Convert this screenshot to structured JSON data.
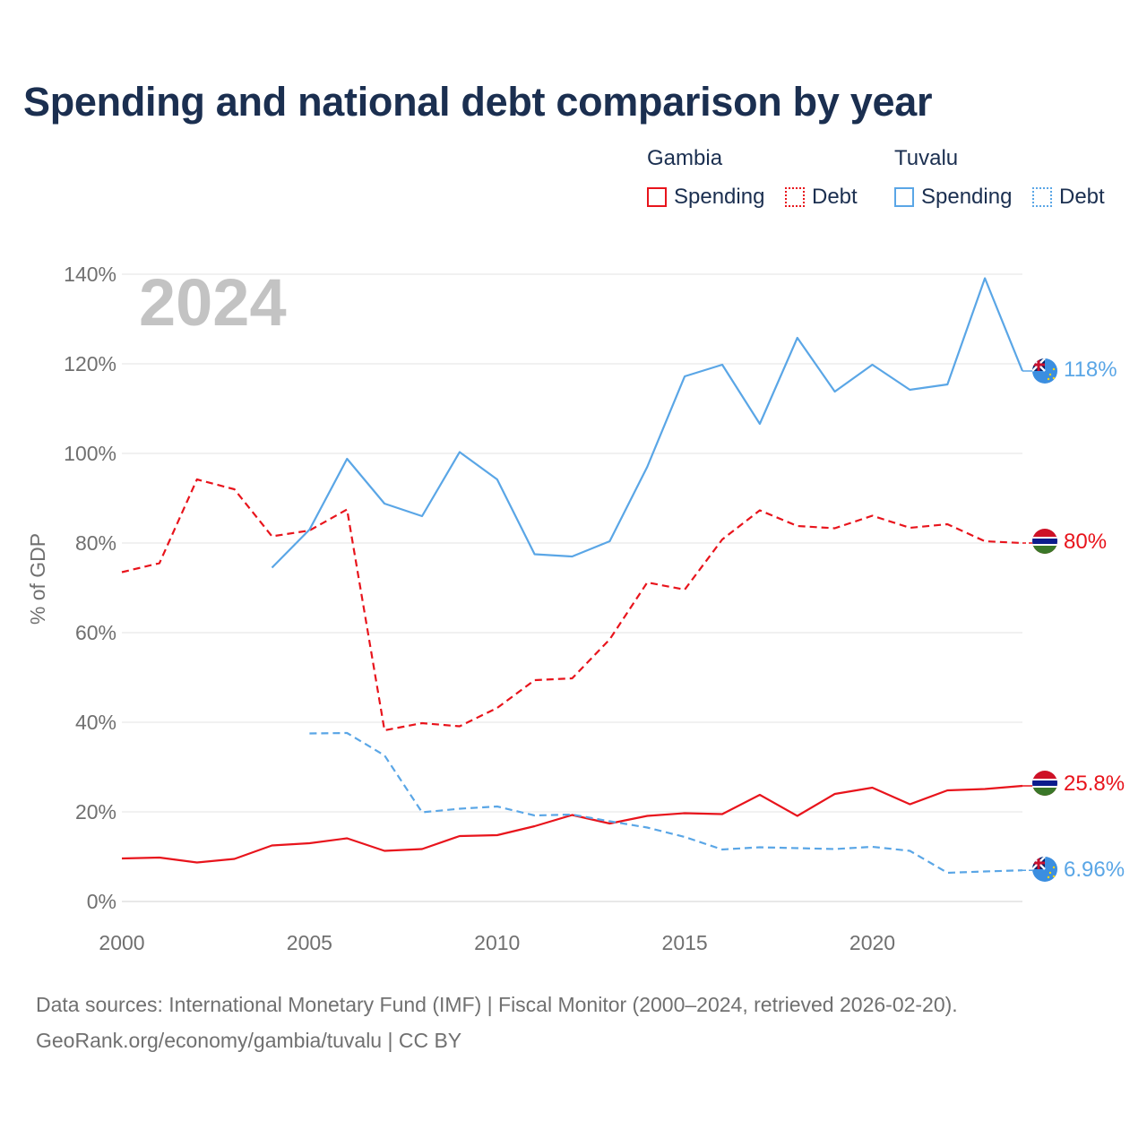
{
  "chart_data": {
    "type": "line",
    "title": "Spending and national debt comparison by year",
    "year_label": "2024",
    "ylabel": "% of GDP",
    "xlabel": "",
    "xlim": [
      2000,
      2024
    ],
    "ylim": [
      0,
      140
    ],
    "x_ticks": [
      2000,
      2005,
      2010,
      2015,
      2020
    ],
    "x_tick_labels": [
      "2000",
      "2005",
      "2010",
      "2015",
      "2020"
    ],
    "y_ticks": [
      0,
      20,
      40,
      60,
      80,
      100,
      120,
      140
    ],
    "y_tick_labels": [
      "0%",
      "20%",
      "40%",
      "60%",
      "80%",
      "100%",
      "120%",
      "140%"
    ],
    "grid": true,
    "legend_position": "top-right",
    "legend": {
      "groups": [
        {
          "country": "Gambia",
          "items": [
            {
              "label": "Spending",
              "style": "solid"
            },
            {
              "label": "Debt",
              "style": "dotted"
            }
          ],
          "color": "#e8141c"
        },
        {
          "country": "Tuvalu",
          "items": [
            {
              "label": "Spending",
              "style": "solid"
            },
            {
              "label": "Debt",
              "style": "dotted"
            }
          ],
          "color": "#5aa6e6"
        }
      ]
    },
    "series": [
      {
        "name": "Gambia Debt",
        "country": "Gambia",
        "metric": "Debt",
        "color": "#e8141c",
        "dash": "dashed",
        "x": [
          2000,
          2001,
          2002,
          2003,
          2004,
          2005,
          2006,
          2007,
          2008,
          2009,
          2010,
          2011,
          2012,
          2013,
          2014,
          2015,
          2016,
          2017,
          2018,
          2019,
          2020,
          2021,
          2022,
          2023,
          2024
        ],
        "values": [
          73.5,
          75.5,
          94.2,
          92.0,
          81.5,
          82.8,
          87.5,
          38.2,
          39.8,
          39.1,
          43.2,
          49.4,
          49.8,
          58.5,
          71.2,
          69.6,
          80.8,
          87.3,
          83.8,
          83.3,
          86.1,
          83.4,
          84.2,
          80.4,
          80.0
        ],
        "end_label": "80%"
      },
      {
        "name": "Gambia Spending",
        "country": "Gambia",
        "metric": "Spending",
        "color": "#e8141c",
        "dash": "solid",
        "x": [
          2000,
          2001,
          2002,
          2003,
          2004,
          2005,
          2006,
          2007,
          2008,
          2009,
          2010,
          2011,
          2012,
          2013,
          2014,
          2015,
          2016,
          2017,
          2018,
          2019,
          2020,
          2021,
          2022,
          2023,
          2024
        ],
        "values": [
          9.6,
          9.8,
          8.7,
          9.5,
          12.5,
          13.0,
          14.1,
          11.3,
          11.7,
          14.6,
          14.8,
          16.8,
          19.3,
          17.4,
          19.1,
          19.7,
          19.5,
          23.8,
          19.1,
          24.0,
          25.4,
          21.7,
          24.8,
          25.1,
          25.8
        ],
        "end_label": "25.8%"
      },
      {
        "name": "Tuvalu Spending",
        "country": "Tuvalu",
        "metric": "Spending",
        "color": "#5aa6e6",
        "dash": "solid",
        "x": [
          2004,
          2005,
          2006,
          2007,
          2008,
          2009,
          2010,
          2011,
          2012,
          2013,
          2014,
          2015,
          2016,
          2017,
          2018,
          2019,
          2020,
          2021,
          2022,
          2023,
          2024
        ],
        "values": [
          74.5,
          83.0,
          98.8,
          88.8,
          86.0,
          100.3,
          94.2,
          77.5,
          77.0,
          80.4,
          97.0,
          117.2,
          119.8,
          106.6,
          125.8,
          113.8,
          119.8,
          114.2,
          115.4,
          139.1,
          118.4
        ],
        "end_label": "118%"
      },
      {
        "name": "Tuvalu Debt",
        "country": "Tuvalu",
        "metric": "Debt",
        "color": "#5aa6e6",
        "dash": "dashed",
        "x": [
          2005,
          2006,
          2007,
          2008,
          2009,
          2010,
          2011,
          2012,
          2013,
          2014,
          2015,
          2016,
          2017,
          2018,
          2019,
          2020,
          2021,
          2022,
          2023,
          2024
        ],
        "values": [
          37.5,
          37.6,
          32.6,
          19.9,
          20.7,
          21.2,
          19.2,
          19.4,
          17.9,
          16.5,
          14.4,
          11.6,
          12.1,
          11.9,
          11.7,
          12.2,
          11.3,
          6.4,
          6.7,
          6.96
        ],
        "end_label": "6.96%"
      }
    ]
  },
  "footer": {
    "line1": "Data sources: International Monetary Fund (IMF) | Fiscal Monitor (2000–2024, retrieved 2026-02-20).",
    "line2": "GeoRank.org/economy/gambia/tuvalu | CC BY"
  },
  "flags": {
    "gambia": "gambia-flag-icon",
    "tuvalu": "tuvalu-flag-icon"
  },
  "colors": {
    "title": "#1b2f50",
    "gambia": "#e8141c",
    "tuvalu": "#5aa6e6",
    "grid": "#e3e3e3",
    "tick": "#707070",
    "watermark": "#c3c3c3"
  }
}
